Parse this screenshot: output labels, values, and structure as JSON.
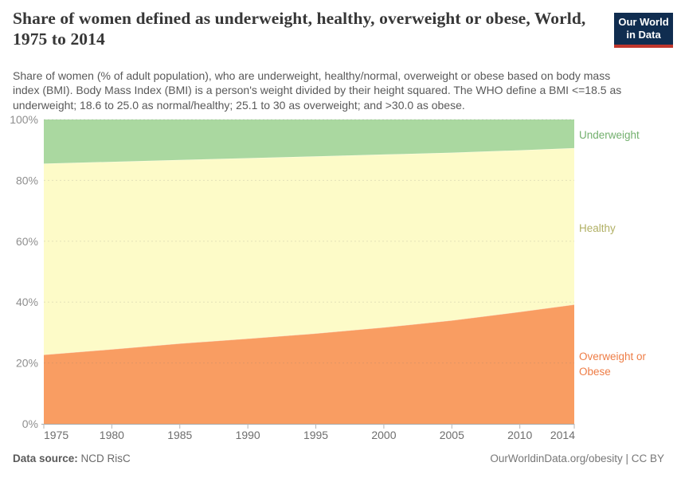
{
  "header": {
    "title": "Share of women defined as underweight, healthy, overweight or obese, World, 1975 to 2014",
    "subtitle": "Share of women (% of adult population), who are underweight, healthy/normal, overweight or obese based on body mass index (BMI). Body Mass Index (BMI) is a person's weight divided by their height squared. The WHO define a BMI <=18.5 as underweight; 18.6 to 25.0 as normal/healthy; 25.1 to 30 as overweight; and >30.0 as obese.",
    "logo": {
      "line1": "Our World",
      "line2": "in Data",
      "bg": "#102d50",
      "accent": "#c0362c"
    }
  },
  "chart_data": {
    "type": "area",
    "stacked": true,
    "title": "Share of women defined as underweight, healthy, overweight or obese, World, 1975 to 2014",
    "xlabel": "",
    "ylabel": "",
    "x": [
      1975,
      1980,
      1985,
      1990,
      1995,
      2000,
      2005,
      2010,
      2014
    ],
    "series": [
      {
        "id": "overweight-or-obese",
        "name": "Overweight or Obese",
        "color": "#f99d62",
        "label_color": "#ee7d46",
        "values": [
          22.7,
          24.5,
          26.4,
          28.0,
          29.7,
          31.7,
          34.0,
          36.8,
          39.2
        ]
      },
      {
        "id": "healthy",
        "name": "Healthy",
        "color": "#fdfbc8",
        "label_color": "#b1b065",
        "values": [
          62.8,
          61.6,
          60.3,
          59.3,
          58.2,
          56.8,
          55.1,
          53.1,
          51.4
        ]
      },
      {
        "id": "underweight",
        "name": "Underweight",
        "color": "#aad8a0",
        "label_color": "#73b06e",
        "values": [
          14.5,
          13.9,
          13.3,
          12.7,
          12.1,
          11.5,
          10.9,
          10.1,
          9.4
        ]
      }
    ],
    "ylim": [
      0,
      100
    ],
    "yticks": [
      {
        "v": 0,
        "label": "0%"
      },
      {
        "v": 20,
        "label": "20%"
      },
      {
        "v": 40,
        "label": "40%"
      },
      {
        "v": 60,
        "label": "60%"
      },
      {
        "v": 80,
        "label": "80%"
      },
      {
        "v": 100,
        "label": "100%"
      }
    ],
    "xticks": [
      {
        "v": 1975,
        "label": "1975"
      },
      {
        "v": 1980,
        "label": "1980"
      },
      {
        "v": 1985,
        "label": "1985"
      },
      {
        "v": 1990,
        "label": "1990"
      },
      {
        "v": 1995,
        "label": "1995"
      },
      {
        "v": 2000,
        "label": "2000"
      },
      {
        "v": 2005,
        "label": "2005"
      },
      {
        "v": 2010,
        "label": "2010"
      },
      {
        "v": 2014,
        "label": "2014"
      }
    ],
    "grid": true,
    "legend_position": "right"
  },
  "footer": {
    "source_label": "Data source:",
    "source_value": "NCD RisC",
    "credit": "OurWorldinData.org/obesity | CC BY"
  }
}
